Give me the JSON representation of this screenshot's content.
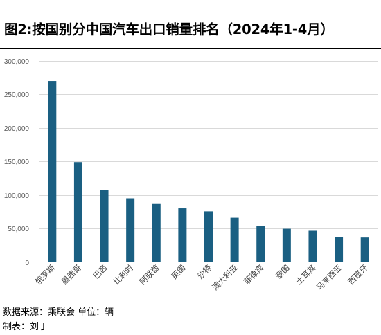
{
  "title": "图2:按国别分中国汽车出口销量排名（2024年1-4月）",
  "footer": {
    "source": "数据来源：乘联会   单位：辆",
    "author": "制表：刘丁"
  },
  "colors": {
    "bar": "#1a5f82",
    "grid": "#d9d9d9",
    "axis_text": "#595959"
  },
  "chart_data": {
    "type": "bar",
    "categories": [
      "俄罗斯",
      "墨西哥",
      "巴西",
      "比利时",
      "阿联酋",
      "英国",
      "沙特",
      "澳大利亚",
      "菲律宾",
      "泰国",
      "土耳其",
      "马来西亚",
      "西班牙"
    ],
    "values": [
      270000,
      149000,
      107000,
      95000,
      86500,
      80000,
      75500,
      66000,
      53500,
      49500,
      46500,
      37000,
      36500
    ],
    "ylim": [
      0,
      300000
    ],
    "yticks": [
      0,
      50000,
      100000,
      150000,
      200000,
      250000,
      300000
    ],
    "ytick_labels": [
      "0",
      "50,000",
      "100,000",
      "150,000",
      "200,000",
      "250,000",
      "300,000"
    ],
    "grid": true,
    "legend": "none"
  }
}
